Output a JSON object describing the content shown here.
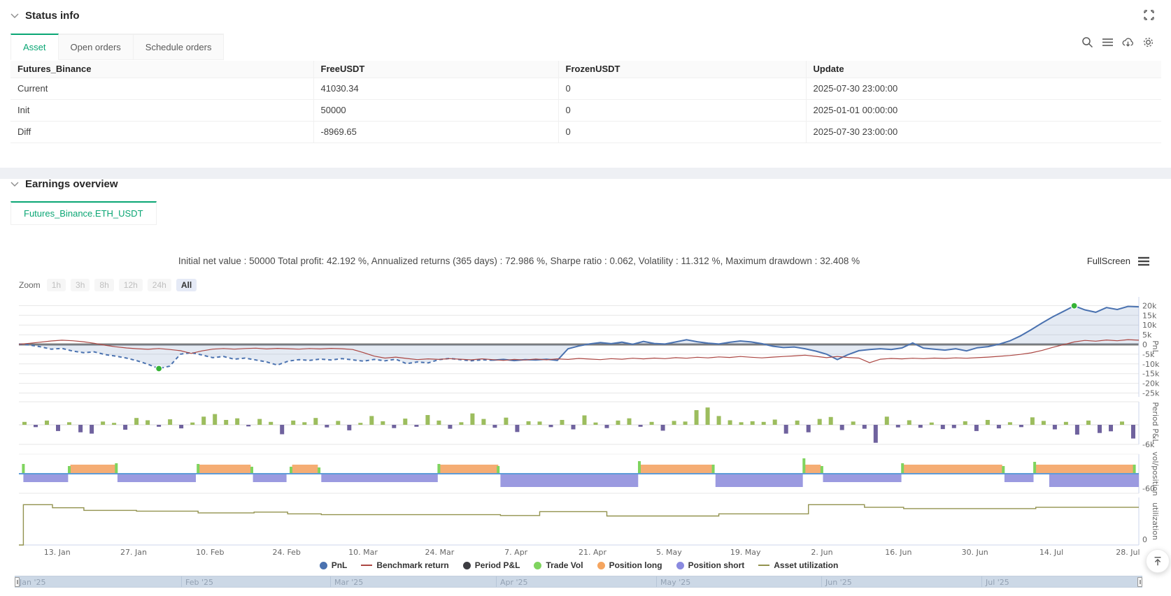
{
  "status": {
    "title": "Status info",
    "tabs": [
      {
        "label": "Asset"
      },
      {
        "label": "Open orders"
      },
      {
        "label": "Schedule orders"
      }
    ],
    "columns": [
      "Futures_Binance",
      "FreeUSDT",
      "FrozenUSDT",
      "Update"
    ],
    "rows": [
      {
        "name": "Current",
        "free": "41030.34",
        "frozen": "0",
        "update": "2025-07-30 23:00:00"
      },
      {
        "name": "Init",
        "free": "50000",
        "frozen": "0",
        "update": "2025-01-01 00:00:00"
      },
      {
        "name": "Diff",
        "free": "-8969.65",
        "frozen": "0",
        "update": "2025-07-30 23:00:00"
      }
    ]
  },
  "earnings": {
    "title": "Earnings overview",
    "tab": "Futures_Binance.ETH_USDT",
    "summary": "Initial net value : 50000 Total profit: 42.192 %, Annualized returns (365 days) : 72.986 %, Sharpe ratio : 0.062, Volatility : 11.312 %, Maximum drawdown : 32.408 %",
    "fullscreen": "FullScreen",
    "zoom_label": "Zoom",
    "zoom_buttons": [
      "1h",
      "3h",
      "8h",
      "12h",
      "24h",
      "All"
    ],
    "zoom_active": "All"
  },
  "chart_data": {
    "type": "line",
    "panels_titles": [
      "PnL",
      "Period P&L",
      "vol/position",
      "utilization"
    ],
    "x_ticks": [
      "13. Jan",
      "27. Jan",
      "10. Feb",
      "24. Feb",
      "10. Mar",
      "24. Mar",
      "7. Apr",
      "21. Apr",
      "5. May",
      "19. May",
      "2. Jun",
      "16. Jun",
      "30. Jun",
      "14. Jul",
      "28. Jul"
    ],
    "navigator_labels": [
      "Jan '25",
      "Feb '25",
      "Mar '25",
      "Apr '25",
      "May '25",
      "Jun '25",
      "Jul '25"
    ],
    "y_ticks": {
      "pnl": [
        "20k",
        "15k",
        "10k",
        "5k",
        "0",
        "-5k",
        "-10k",
        "-15k",
        "-20k",
        "-25k"
      ],
      "period_pnl": [
        "-6k"
      ],
      "vol_position": [
        "-60"
      ],
      "utilization": [
        "0"
      ]
    },
    "legend": [
      {
        "label": "PnL",
        "color": "#4a72b0",
        "marker": "circle"
      },
      {
        "label": "Benchmark return",
        "color": "#ab4642",
        "marker": "line"
      },
      {
        "label": "Period P&L",
        "color": "#3d3d42",
        "marker": "circle"
      },
      {
        "label": "Trade Vol",
        "color": "#7fd45f",
        "marker": "circle"
      },
      {
        "label": "Position long",
        "color": "#f5a55f",
        "marker": "circle"
      },
      {
        "label": "Position short",
        "color": "#8a8ae0",
        "marker": "circle"
      },
      {
        "label": "Asset utilization",
        "color": "#92924e",
        "marker": "line"
      }
    ],
    "colors": {
      "pnl_line": "#4a72b0",
      "pnl_area": "rgba(74,114,176,0.15)",
      "benchmark": "#ab4642",
      "bar_pos": "#9cbd5e",
      "bar_neg": "#6f629e",
      "trade_vol": "#7fd45f",
      "long_band": "#f5ad74",
      "short_band": "#9b9ae0",
      "zero_axis": "#5e9cd8",
      "utilization": "#92924e",
      "marker_dot": "#35b335",
      "grid": "#e7e7e7",
      "zero_thick": "#7c7c7c",
      "axis": "#ccd6eb",
      "tick_text": "#666666"
    },
    "series": {
      "pnl_k": [
        0.2,
        -0.3,
        -1.2,
        -2.4,
        -2.0,
        -3.4,
        -4.2,
        -3.8,
        -5.2,
        -6.0,
        -7.0,
        -8.4,
        -10.2,
        -12.4,
        -11.2,
        -5.0,
        -4.2,
        -5.4,
        -6.8,
        -6.2,
        -7.6,
        -7.0,
        -8.0,
        -9.0,
        -10.6,
        -8.6,
        -7.8,
        -8.2,
        -7.5,
        -8.0,
        -7.3,
        -7.9,
        -8.6,
        -7.7,
        -8.4,
        -7.6,
        -9.9,
        -9.0,
        -9.5,
        -7.8,
        -7.2,
        -7.8,
        -8.4,
        -7.9,
        -8.1,
        -7.7,
        -8.3,
        -7.8,
        -8.0,
        -7.6,
        -8.2,
        -2.2,
        -0.8,
        0.3,
        1.0,
        0.4,
        1.2,
        0.1,
        1.6,
        0.5,
        0.2,
        1.3,
        2.4,
        1.4,
        0.7,
        0.2,
        1.1,
        1.8,
        1.3,
        0.4,
        -0.9,
        -1.6,
        -1.3,
        -2.2,
        -3.4,
        -5.0,
        -7.8,
        -5.2,
        -3.2,
        -2.6,
        -2.2,
        -2.6,
        -1.8,
        0.8,
        -1.9,
        -2.4,
        -2.9,
        -2.2,
        -3.3,
        -1.7,
        -1.1,
        0.1,
        1.8,
        4.4,
        7.6,
        11.0,
        14.2,
        17.0,
        19.9,
        17.8,
        16.6,
        19.0,
        18.0,
        19.6,
        19.4
      ],
      "benchmark_k": [
        0.1,
        0.6,
        1.2,
        1.8,
        2.2,
        1.9,
        1.4,
        0.6,
        -0.4,
        -1.2,
        -1.8,
        -2.2,
        -2.5,
        -2.1,
        -2.6,
        -3.2,
        -4.6,
        -3.3,
        -2.4,
        -2.1,
        -2.4,
        -2.1,
        -1.9,
        -2.3,
        -2.0,
        -2.2,
        -2.4,
        -2.1,
        -2.3,
        -2.0,
        -2.2,
        -2.6,
        -4.2,
        -6.0,
        -7.0,
        -6.5,
        -7.2,
        -7.8,
        -7.4,
        -7.7,
        -7.3,
        -7.6,
        -7.9,
        -7.4,
        -7.8,
        -8.2,
        -7.7,
        -8.0,
        -7.5,
        -7.9,
        -7.4,
        -7.7,
        -7.2,
        -7.5,
        -7.8,
        -7.3,
        -7.6,
        -7.1,
        -7.4,
        -7.0,
        -7.3,
        -6.8,
        -7.1,
        -6.6,
        -6.9,
        -6.4,
        -6.7,
        -6.2,
        -6.6,
        -6.9,
        -6.5,
        -6.2,
        -5.9,
        -5.5,
        -6.1,
        -6.8,
        -6.2,
        -6.7,
        -7.0,
        -9.4,
        -7.6,
        -7.2,
        -7.4,
        -7.1,
        -7.3,
        -7.0,
        -7.2,
        -6.9,
        -7.1,
        -6.8,
        -6.5,
        -6.1,
        -5.7,
        -5.1,
        -4.3,
        -3.1,
        -1.5,
        -0.1,
        1.3,
        2.1,
        1.7,
        2.3,
        1.9,
        2.5,
        2.2
      ],
      "period_pnl_k": [
        0.9,
        -0.7,
        1.3,
        -1.9,
        0.8,
        -2.3,
        -2.7,
        1.0,
        0.6,
        -1.5,
        2.1,
        1.4,
        -0.6,
        1.7,
        -1.1,
        0.7,
        2.5,
        3.3,
        1.5,
        2.0,
        -0.5,
        1.8,
        0.9,
        -2.9,
        1.3,
        0.8,
        2.1,
        -0.8,
        1.2,
        -1.7,
        0.6,
        2.7,
        1.1,
        -1.0,
        1.9,
        -0.6,
        3.0,
        1.3,
        -1.2,
        0.8,
        3.5,
        1.8,
        -0.9,
        2.2,
        -2.2,
        1.1,
        1.0,
        -0.7,
        1.5,
        -1.4,
        2.9,
        0.7,
        -1.0,
        1.3,
        2.0,
        -0.6,
        0.9,
        -1.8,
        1.2,
        1.0,
        4.5,
        5.3,
        2.7,
        1.4,
        0.8,
        1.1,
        0.9,
        1.6,
        -2.7,
        1.3,
        -2.3,
        1.8,
        2.4,
        -1.6,
        1.0,
        -1.2,
        -5.5,
        2.5,
        -0.8,
        1.4,
        -0.9,
        0.7,
        -1.3,
        -1.0,
        1.1,
        -1.9,
        1.5,
        -1.1,
        0.8,
        -0.7,
        2.3,
        1.2,
        -1.4,
        0.9,
        -3.0,
        1.3,
        -2.5,
        -2.0,
        1.0,
        -4.2
      ],
      "position_segments": [
        {
          "side": "short",
          "from": 0.004,
          "to": 0.044,
          "size": 1
        },
        {
          "side": "long",
          "from": 0.046,
          "to": 0.086
        },
        {
          "side": "short",
          "from": 0.088,
          "to": 0.158,
          "size": 1
        },
        {
          "side": "long",
          "from": 0.161,
          "to": 0.207
        },
        {
          "side": "short",
          "from": 0.209,
          "to": 0.239,
          "size": 1
        },
        {
          "side": "long",
          "from": 0.244,
          "to": 0.267
        },
        {
          "side": "short",
          "from": 0.27,
          "to": 0.374,
          "size": 1
        },
        {
          "side": "long",
          "from": 0.376,
          "to": 0.428
        },
        {
          "side": "short",
          "from": 0.43,
          "to": 0.553,
          "size": 2
        },
        {
          "side": "long",
          "from": 0.555,
          "to": 0.62
        },
        {
          "side": "short",
          "from": 0.622,
          "to": 0.7,
          "size": 2
        },
        {
          "side": "long",
          "from": 0.702,
          "to": 0.716
        },
        {
          "side": "short",
          "from": 0.718,
          "to": 0.788,
          "size": 1
        },
        {
          "side": "long",
          "from": 0.79,
          "to": 0.878
        },
        {
          "side": "short",
          "from": 0.88,
          "to": 0.906,
          "size": 1
        },
        {
          "side": "long",
          "from": 0.908,
          "to": 0.997
        },
        {
          "side": "short",
          "from": 0.92,
          "to": 1.0,
          "size": 2
        }
      ],
      "trade_vol": [
        [
          0.004,
          12
        ],
        [
          0.045,
          9
        ],
        [
          0.087,
          13
        ],
        [
          0.16,
          12
        ],
        [
          0.208,
          8
        ],
        [
          0.243,
          8
        ],
        [
          0.268,
          7
        ],
        [
          0.375,
          12
        ],
        [
          0.428,
          9
        ],
        [
          0.554,
          16
        ],
        [
          0.62,
          11
        ],
        [
          0.701,
          20
        ],
        [
          0.717,
          9
        ],
        [
          0.789,
          13
        ],
        [
          0.879,
          9
        ],
        [
          0.907,
          15
        ],
        [
          0.996,
          11
        ]
      ],
      "utilization_steps": [
        [
          0,
          0
        ],
        [
          0.004,
          0.93
        ],
        [
          0.03,
          0.86
        ],
        [
          0.058,
          0.8
        ],
        [
          0.105,
          0.78
        ],
        [
          0.16,
          0.74
        ],
        [
          0.21,
          0.76
        ],
        [
          0.24,
          0.72
        ],
        [
          0.27,
          0.7
        ],
        [
          0.375,
          0.7
        ],
        [
          0.43,
          0.68
        ],
        [
          0.465,
          0.77
        ],
        [
          0.52,
          0.77
        ],
        [
          0.525,
          0.67
        ],
        [
          0.62,
          0.67
        ],
        [
          0.625,
          0.72
        ],
        [
          0.7,
          0.72
        ],
        [
          0.705,
          0.93
        ],
        [
          0.755,
          0.87
        ],
        [
          0.79,
          0.84
        ],
        [
          0.878,
          0.84
        ],
        [
          0.908,
          0.87
        ],
        [
          1,
          0.87
        ]
      ]
    }
  }
}
